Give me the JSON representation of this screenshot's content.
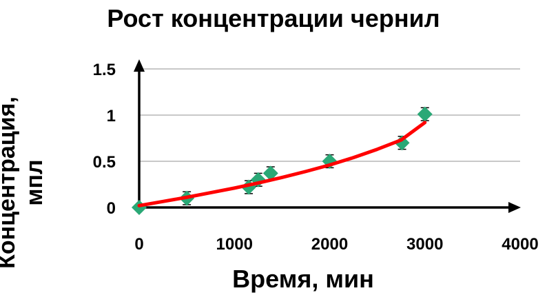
{
  "chart_data": {
    "type": "scatter",
    "title": "Рост концентрации чернил",
    "xlabel": "Время, мин",
    "ylabel_lines": [
      "Концентрация,",
      "мпл"
    ],
    "xlim": [
      0,
      4000
    ],
    "ylim": [
      0,
      1.5
    ],
    "xticks": [
      0,
      1000,
      2000,
      3000,
      4000
    ],
    "yticks": [
      0,
      0.5,
      1,
      1.5
    ],
    "ytick_labels": [
      "0",
      "0.5",
      "1",
      "1.5"
    ],
    "grid": true,
    "series": [
      {
        "marker": "diamond",
        "color": "#2aa876",
        "error_bar": 0.07,
        "x": [
          0,
          500,
          1150,
          1250,
          1380,
          2000,
          2760,
          3000
        ],
        "y": [
          0,
          0.1,
          0.22,
          0.3,
          0.37,
          0.5,
          0.7,
          1.01
        ]
      }
    ],
    "trendline": {
      "color": "#ff0000",
      "x": [
        0,
        250,
        500,
        750,
        1000,
        1250,
        1500,
        1750,
        2000,
        2250,
        2500,
        2750,
        3000
      ],
      "y": [
        0.02,
        0.065,
        0.11,
        0.16,
        0.21,
        0.265,
        0.325,
        0.39,
        0.46,
        0.54,
        0.63,
        0.73,
        0.92
      ]
    }
  }
}
